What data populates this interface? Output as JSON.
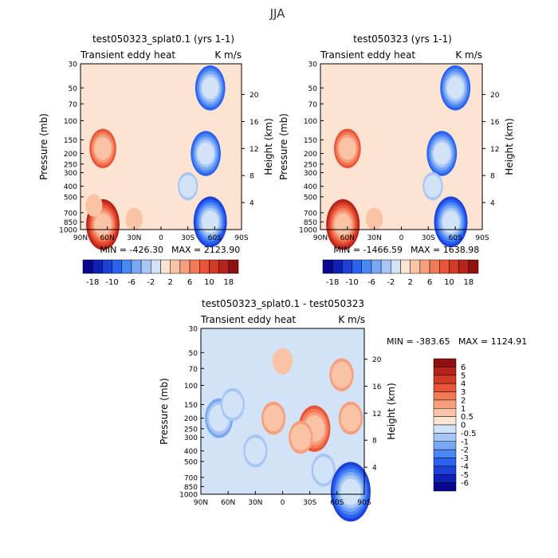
{
  "figure": {
    "title": "JJA"
  },
  "colorbar_small": {
    "colors": [
      "#08088e",
      "#0f20b4",
      "#1c40d8",
      "#2b62f0",
      "#4b86f5",
      "#7aa7f5",
      "#a8c6f5",
      "#d2e3f7",
      "#fde3d1",
      "#fbc3a6",
      "#f79f7c",
      "#f27a57",
      "#e8553a",
      "#d23a26",
      "#b5231a",
      "#8e1010"
    ],
    "labels": [
      "-18",
      "-10",
      "-6",
      "-2",
      "2",
      "6",
      "10",
      "18"
    ]
  },
  "colorbar_big": {
    "colors": [
      "#08088e",
      "#0f20b4",
      "#1c40d8",
      "#2b62f0",
      "#4b86f5",
      "#7aa7f5",
      "#a8c6f5",
      "#d2e3f7",
      "#fde3d1",
      "#fbc3a6",
      "#f79f7c",
      "#f27a57",
      "#e8553a",
      "#d23a26",
      "#b5231a",
      "#8e1010"
    ],
    "labels": [
      "6",
      "5",
      "4",
      "3",
      "2",
      "1",
      "0.5",
      "0",
      "-0.5",
      "-1",
      "-2",
      "-3",
      "-4",
      "-5",
      "-6"
    ]
  },
  "chart_data": [
    {
      "type": "heatmap",
      "title": "test050323_splat0.1 (yrs 1-1)",
      "subtitle_left": "Transient eddy heat",
      "subtitle_right": "K m/s",
      "xlabel": "",
      "ylabel": "Pressure (mb)",
      "ylabel_right": "Height (km)",
      "x_ticks": [
        "90N",
        "60N",
        "30N",
        "0",
        "30S",
        "60S",
        "90S"
      ],
      "y_ticks": [
        "30",
        "50",
        "70",
        "100",
        "150",
        "200",
        "250",
        "300",
        "400",
        "500",
        "700",
        "850",
        "1000"
      ],
      "y_right_ticks": [
        "20",
        "16",
        "12",
        "8",
        "4"
      ],
      "ylim": [
        1000,
        30
      ],
      "xlim": [
        90,
        -90
      ],
      "min_label": "MIN = -426.30",
      "max_label": "MAX = 2123.90",
      "min": -426.3,
      "max": 2123.9,
      "features": [
        {
          "lat": 65,
          "p": 180,
          "value": 12
        },
        {
          "lat": 65,
          "p": 900,
          "value": 18
        },
        {
          "lat": 75,
          "p": 600,
          "value": 4
        },
        {
          "lat": 30,
          "p": 800,
          "value": 4
        },
        {
          "lat": -50,
          "p": 200,
          "value": -14
        },
        {
          "lat": -55,
          "p": 850,
          "value": -18
        },
        {
          "lat": -55,
          "p": 50,
          "value": -14
        },
        {
          "lat": -30,
          "p": 400,
          "value": -6
        }
      ]
    },
    {
      "type": "heatmap",
      "title": "test050323 (yrs 1-1)",
      "subtitle_left": "Transient eddy heat",
      "subtitle_right": "K m/s",
      "xlabel": "",
      "ylabel": "Pressure (mb)",
      "ylabel_right": "Height (km)",
      "x_ticks": [
        "90N",
        "60N",
        "30N",
        "0",
        "30S",
        "60S",
        "90S"
      ],
      "y_ticks": [
        "30",
        "50",
        "70",
        "100",
        "150",
        "200",
        "250",
        "300",
        "400",
        "500",
        "700",
        "850",
        "1000"
      ],
      "y_right_ticks": [
        "20",
        "16",
        "12",
        "8",
        "4"
      ],
      "ylim": [
        1000,
        30
      ],
      "xlim": [
        90,
        -90
      ],
      "min_label": "MIN = -1466.59",
      "max_label": "MAX = 1638.98",
      "min": -1466.59,
      "max": 1638.98,
      "features": [
        {
          "lat": 60,
          "p": 180,
          "value": 12
        },
        {
          "lat": 65,
          "p": 900,
          "value": 18
        },
        {
          "lat": 30,
          "p": 800,
          "value": 4
        },
        {
          "lat": -45,
          "p": 200,
          "value": -14
        },
        {
          "lat": -55,
          "p": 850,
          "value": -18
        },
        {
          "lat": -60,
          "p": 50,
          "value": -14
        },
        {
          "lat": -35,
          "p": 400,
          "value": -6
        }
      ]
    },
    {
      "type": "heatmap",
      "title": "test050323_splat0.1 - test050323",
      "subtitle_left": "Transient eddy heat",
      "subtitle_right": "K m/s",
      "xlabel": "",
      "ylabel": "Pressure (mb)",
      "ylabel_right": "Height (km)",
      "x_ticks": [
        "90N",
        "60N",
        "30N",
        "0",
        "30S",
        "60S",
        "90S"
      ],
      "y_ticks": [
        "30",
        "50",
        "70",
        "100",
        "150",
        "200",
        "250",
        "300",
        "400",
        "500",
        "700",
        "850",
        "1000"
      ],
      "y_right_ticks": [
        "20",
        "16",
        "12",
        "8",
        "4"
      ],
      "ylim": [
        1000,
        30
      ],
      "xlim": [
        90,
        -90
      ],
      "min_label": "MIN = -383.65",
      "max_label": "MAX = 1124.91",
      "min": -383.65,
      "max": 1124.91,
      "features": [
        {
          "lat": 70,
          "p": 200,
          "value": -3
        },
        {
          "lat": 55,
          "p": 150,
          "value": -2
        },
        {
          "lat": 30,
          "p": 400,
          "value": -1.5
        },
        {
          "lat": -35,
          "p": 250,
          "value": 4
        },
        {
          "lat": -20,
          "p": 300,
          "value": 2
        },
        {
          "lat": -65,
          "p": 80,
          "value": 2
        },
        {
          "lat": -75,
          "p": 200,
          "value": 2
        },
        {
          "lat": -45,
          "p": 600,
          "value": -2
        },
        {
          "lat": -75,
          "p": 950,
          "value": -6
        },
        {
          "lat": 10,
          "p": 200,
          "value": 1.5
        },
        {
          "lat": 0,
          "p": 60,
          "value": 1
        }
      ]
    }
  ]
}
